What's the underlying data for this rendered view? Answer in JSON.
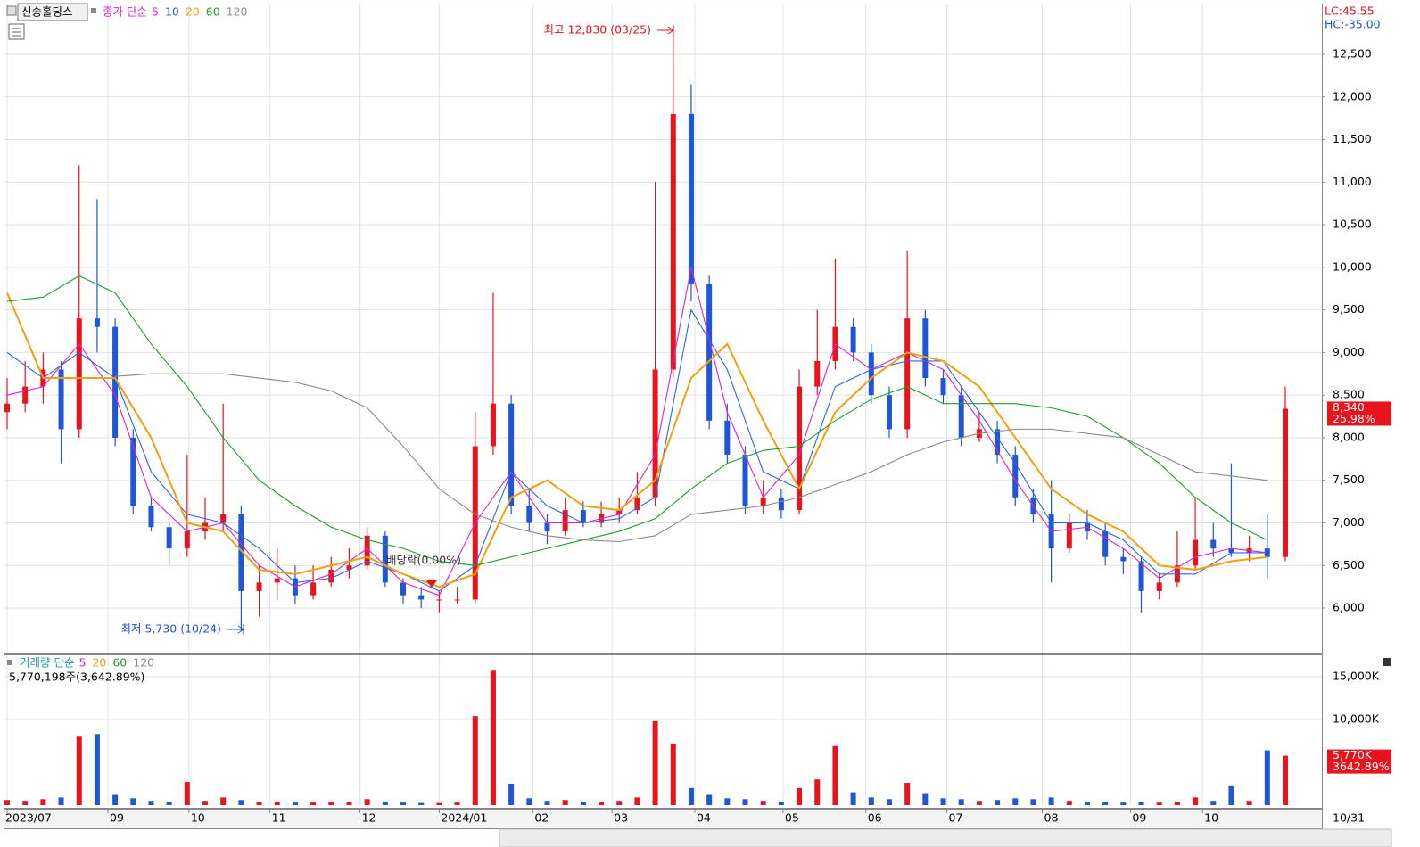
{
  "chart_data": {
    "type": "candlestick",
    "stock_name": "신송홀딩스",
    "legend_prefix": "종가 단순",
    "lc_label": "LC:45.55",
    "hc_label": "HC:-35.00",
    "ylim": [
      5477,
      13086
    ],
    "yticks": [
      {
        "value": 6000,
        "label": "6,000"
      },
      {
        "value": 6500,
        "label": "6,500"
      },
      {
        "value": 7000,
        "label": "7,000"
      },
      {
        "value": 7500,
        "label": "7,500"
      },
      {
        "value": 8000,
        "label": "8,000"
      },
      {
        "value": 8500,
        "label": "8,500"
      },
      {
        "value": 9000,
        "label": "9,000"
      },
      {
        "value": 9500,
        "label": "9,500"
      },
      {
        "value": 10000,
        "label": "10,000"
      },
      {
        "value": 10500,
        "label": "10,500"
      },
      {
        "value": 11000,
        "label": "11,000"
      },
      {
        "value": 11500,
        "label": "11,500"
      },
      {
        "value": 12000,
        "label": "12,000"
      },
      {
        "value": 12500,
        "label": "12,500"
      }
    ],
    "xticks": [
      {
        "value": 0,
        "label": "2023/07"
      },
      {
        "value": 5.6,
        "label": "09"
      },
      {
        "value": 10.1,
        "label": "10"
      },
      {
        "value": 14.6,
        "label": "11"
      },
      {
        "value": 19.6,
        "label": "12"
      },
      {
        "value": 24,
        "label": "2024/01"
      },
      {
        "value": 29.2,
        "label": "02"
      },
      {
        "value": 33.6,
        "label": "03"
      },
      {
        "value": 38.2,
        "label": "04"
      },
      {
        "value": 43.1,
        "label": "05"
      },
      {
        "value": 47.7,
        "label": "06"
      },
      {
        "value": 52.2,
        "label": "07"
      },
      {
        "value": 57.5,
        "label": "08"
      },
      {
        "value": 62.4,
        "label": "09"
      },
      {
        "value": 66.4,
        "label": "10"
      }
    ],
    "end_date_label": "10/31",
    "candles": [
      [
        8300,
        8700,
        8100,
        8400
      ],
      [
        8400,
        8900,
        8300,
        8600
      ],
      [
        8600,
        9000,
        8400,
        8800
      ],
      [
        8800,
        8900,
        7700,
        8100
      ],
      [
        8100,
        11200,
        8000,
        9400
      ],
      [
        9400,
        10800,
        9000,
        9300
      ],
      [
        9300,
        9400,
        7900,
        8000
      ],
      [
        8000,
        8100,
        7100,
        7200
      ],
      [
        7200,
        7300,
        6900,
        6950
      ],
      [
        6950,
        7000,
        6500,
        6700
      ],
      [
        6700,
        7800,
        6600,
        6900
      ],
      [
        6900,
        7300,
        6800,
        7000
      ],
      [
        7000,
        8400,
        6900,
        7100
      ],
      [
        7100,
        7200,
        5730,
        6200
      ],
      [
        6200,
        6500,
        5900,
        6300
      ],
      [
        6300,
        6700,
        6100,
        6350
      ],
      [
        6350,
        6500,
        6050,
        6150
      ],
      [
        6150,
        6500,
        6100,
        6300
      ],
      [
        6300,
        6600,
        6250,
        6450
      ],
      [
        6450,
        6700,
        6350,
        6500
      ],
      [
        6500,
        6950,
        6450,
        6850
      ],
      [
        6850,
        6900,
        6250,
        6300
      ],
      [
        6300,
        6350,
        6050,
        6150
      ],
      [
        6150,
        6250,
        6000,
        6100
      ],
      [
        6100,
        6200,
        5950,
        6100
      ],
      [
        6100,
        6250,
        6050,
        6100
      ],
      [
        6100,
        8300,
        6050,
        7900
      ],
      [
        7900,
        9700,
        7800,
        8400
      ],
      [
        8400,
        8500,
        7100,
        7200
      ],
      [
        7200,
        7400,
        6900,
        7000
      ],
      [
        7000,
        7100,
        6750,
        6900
      ],
      [
        6900,
        7300,
        6850,
        7150
      ],
      [
        7150,
        7250,
        6950,
        7000
      ],
      [
        7000,
        7250,
        6950,
        7100
      ],
      [
        7100,
        7300,
        7000,
        7150
      ],
      [
        7150,
        7600,
        7100,
        7300
      ],
      [
        7300,
        11000,
        7200,
        8800
      ],
      [
        8800,
        12830,
        8700,
        11800
      ],
      [
        11800,
        12150,
        9600,
        9800
      ],
      [
        9800,
        9900,
        8100,
        8200
      ],
      [
        8200,
        8400,
        7700,
        7800
      ],
      [
        7800,
        7900,
        7100,
        7200
      ],
      [
        7200,
        7500,
        7100,
        7300
      ],
      [
        7300,
        7400,
        7050,
        7150
      ],
      [
        7150,
        8800,
        7100,
        8600
      ],
      [
        8600,
        9500,
        8500,
        8900
      ],
      [
        8900,
        10100,
        8800,
        9300
      ],
      [
        9300,
        9400,
        8900,
        9000
      ],
      [
        9000,
        9100,
        8400,
        8500
      ],
      [
        8500,
        8600,
        8000,
        8100
      ],
      [
        8100,
        10200,
        8000,
        9400
      ],
      [
        9400,
        9500,
        8600,
        8700
      ],
      [
        8700,
        8800,
        8400,
        8500
      ],
      [
        8500,
        8600,
        7900,
        8000
      ],
      [
        8000,
        8300,
        7950,
        8100
      ],
      [
        8100,
        8200,
        7700,
        7800
      ],
      [
        7800,
        7900,
        7200,
        7300
      ],
      [
        7300,
        7400,
        7000,
        7100
      ],
      [
        7100,
        7500,
        6300,
        6700
      ],
      [
        6700,
        7100,
        6650,
        7000
      ],
      [
        7000,
        7150,
        6800,
        6900
      ],
      [
        6900,
        7000,
        6500,
        6600
      ],
      [
        6600,
        6700,
        6400,
        6550
      ],
      [
        6550,
        6600,
        5950,
        6200
      ],
      [
        6200,
        6400,
        6100,
        6300
      ],
      [
        6300,
        6900,
        6250,
        6500
      ],
      [
        6500,
        7300,
        6450,
        6800
      ],
      [
        6800,
        7000,
        6600,
        6700
      ],
      [
        6700,
        7700,
        6600,
        6650
      ],
      [
        6650,
        6850,
        6550,
        6700
      ],
      [
        6700,
        7100,
        6350,
        6600
      ],
      [
        6600,
        8600,
        6550,
        8340
      ]
    ],
    "up_color": "#e8131b",
    "down_color": "#1e56d6",
    "ma_index": [
      0,
      2,
      4,
      6,
      8,
      10,
      12,
      14,
      16,
      18,
      20,
      22,
      24,
      26,
      28,
      30,
      32,
      34,
      36,
      38,
      40,
      42,
      44,
      46,
      48,
      50,
      52,
      54,
      56,
      58,
      60,
      62,
      64,
      66,
      68,
      70
    ],
    "series": [
      {
        "name": "5",
        "color": "#e020d0",
        "values": [
          8500,
          8600,
          9100,
          8500,
          7300,
          6900,
          7000,
          6500,
          6250,
          6400,
          6700,
          6300,
          6150,
          7000,
          7600,
          7000,
          7000,
          7100,
          7800,
          10000,
          8300,
          7300,
          7800,
          9100,
          8800,
          9000,
          8800,
          8200,
          7500,
          6900,
          6950,
          6700,
          6350,
          6600,
          6700,
          6650
        ]
      },
      {
        "name": "10",
        "color": "#2f63e6",
        "values": [
          9000,
          8700,
          9000,
          8700,
          7600,
          7100,
          7000,
          6700,
          6300,
          6350,
          6550,
          6400,
          6200,
          6500,
          7600,
          7200,
          7000,
          7050,
          7300,
          9500,
          8800,
          7600,
          7400,
          8600,
          8800,
          8900,
          8900,
          8300,
          7700,
          7000,
          7000,
          6800,
          6400,
          6400,
          6650,
          6650
        ]
      },
      {
        "name": "20",
        "color": "#f0a010",
        "values": [
          9700,
          8700,
          8700,
          8700,
          8000,
          7000,
          6900,
          6450,
          6400,
          6500,
          6600,
          6400,
          6250,
          6400,
          7300,
          7500,
          7200,
          7150,
          7500,
          8700,
          9100,
          8200,
          7400,
          8300,
          8700,
          9000,
          8900,
          8600,
          8000,
          7400,
          7100,
          6900,
          6500,
          6450,
          6550,
          6600
        ]
      },
      {
        "name": "60",
        "color": "#1f9e2c",
        "values": [
          9600,
          9650,
          9900,
          9700,
          9100,
          8600,
          8000,
          7500,
          7200,
          6950,
          6800,
          6700,
          6550,
          6500,
          6600,
          6700,
          6800,
          6900,
          7050,
          7400,
          7700,
          7850,
          7900,
          8200,
          8450,
          8600,
          8400,
          8400,
          8400,
          8350,
          8250,
          8000,
          7700,
          7300,
          7000,
          6800
        ]
      },
      {
        "name": "120",
        "color": "#8a8a8a",
        "values": [
          null,
          null,
          null,
          8720,
          8750,
          8750,
          8750,
          8700,
          8650,
          8550,
          8350,
          7900,
          7400,
          7100,
          6950,
          6850,
          6800,
          6780,
          6850,
          7100,
          7150,
          7200,
          7300,
          7450,
          7600,
          7800,
          7950,
          8050,
          8100,
          8100,
          8050,
          8000,
          7800,
          7600,
          7550,
          7500
        ]
      }
    ],
    "price_tag": {
      "value": 8340,
      "label": "8,340"
    },
    "change_label": "25.98%",
    "high_annotation": "최고 12,830 (03/25)",
    "low_annotation": "최저 5,730 (10/24)",
    "dividend_annotation": "배당락(0.00%)",
    "volume": {
      "legend_prefix": "거래량 단순",
      "ma_names": [
        {
          "name": "5",
          "color": "#e020d0"
        },
        {
          "name": "20",
          "color": "#f0a010"
        },
        {
          "name": "60",
          "color": "#1f9e2c"
        },
        {
          "name": "120",
          "color": "#8a8a8a"
        }
      ],
      "info": "5,770,198주(3,642.89%)",
      "ylim": [
        0,
        17500
      ],
      "yticks": [
        {
          "value": 10000,
          "label": "10,000K"
        },
        {
          "value": 15000,
          "label": "15,000K"
        }
      ],
      "values": [
        600,
        500,
        700,
        900,
        8000,
        8300,
        1200,
        800,
        500,
        400,
        2700,
        500,
        900,
        600,
        400,
        350,
        300,
        300,
        350,
        400,
        700,
        400,
        300,
        250,
        250,
        300,
        10400,
        15700,
        2500,
        800,
        500,
        600,
        400,
        400,
        500,
        900,
        9800,
        7200,
        2000,
        1200,
        800,
        700,
        500,
        400,
        2000,
        3000,
        6900,
        1500,
        900,
        700,
        2600,
        1400,
        800,
        700,
        500,
        600,
        800,
        700,
        900,
        500,
        400,
        400,
        300,
        400,
        300,
        400,
        900,
        500,
        2200,
        500,
        6400,
        5770
      ],
      "tag": {
        "value": 5770,
        "label": "5,770K"
      },
      "change_label": "3642.89%"
    }
  }
}
